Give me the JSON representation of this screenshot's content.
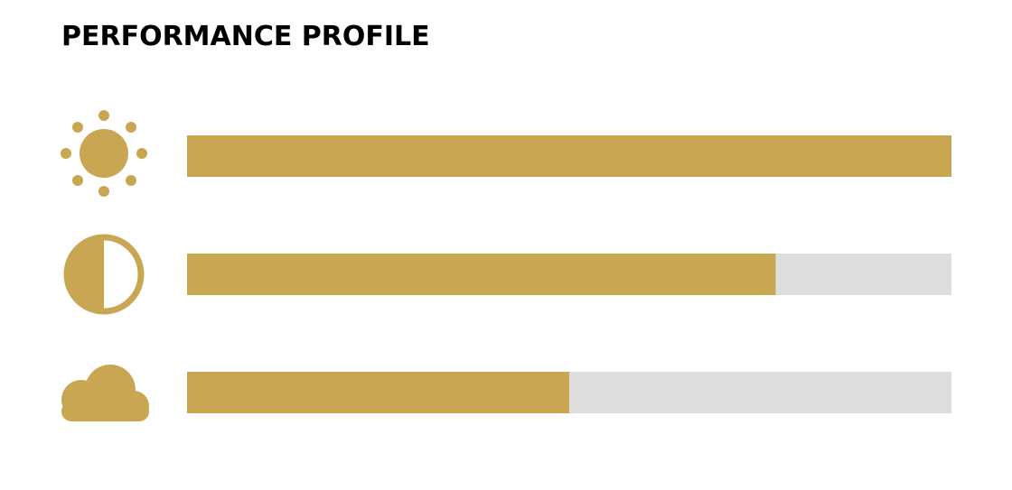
{
  "chart_data": {
    "type": "bar",
    "title": "PERFORMANCE PROFILE",
    "categories": [
      null,
      null,
      null
    ],
    "values": [
      100,
      77,
      50
    ],
    "xlim": [
      0,
      100
    ],
    "color": "#c9a752",
    "track_color": "#dddddd"
  }
}
